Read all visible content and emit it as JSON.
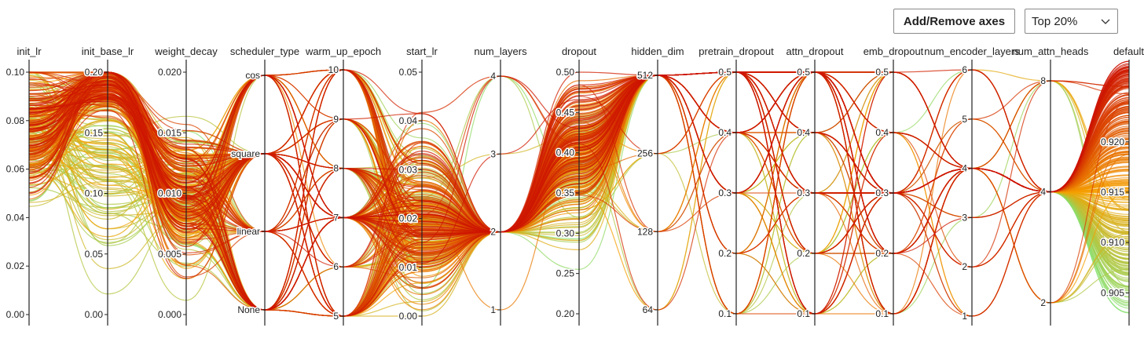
{
  "toolbar": {
    "add_remove_label": "Add/Remove axes",
    "filter_selected": "Top 20%",
    "filter_icon": "chevron-down-icon"
  },
  "colors": {
    "high": "#cc1100",
    "mid": "#f5a000",
    "low": "#7ee67a",
    "axis": "#222222"
  },
  "chart_data": {
    "type": "parallel-coordinates",
    "title": "",
    "color_by": "default",
    "color_range": [
      0.902,
      0.928
    ],
    "axes": [
      {
        "name": "init_lr",
        "type": "linear",
        "range": [
          0.0,
          0.1
        ],
        "ticks": [
          "0.00",
          "0.02",
          "0.04",
          "0.06",
          "0.08",
          "0.10"
        ],
        "tick_values": [
          0,
          0.02,
          0.04,
          0.06,
          0.08,
          0.1
        ]
      },
      {
        "name": "init_base_lr",
        "type": "linear",
        "range": [
          0.0,
          0.2
        ],
        "ticks": [
          "0.00",
          "0.05",
          "0.10",
          "0.15",
          "0.20"
        ],
        "tick_values": [
          0,
          0.05,
          0.1,
          0.15,
          0.2
        ]
      },
      {
        "name": "weight_decay",
        "type": "linear",
        "range": [
          0.0,
          0.02
        ],
        "ticks": [
          "0.000",
          "0.005",
          "0.010",
          "0.015",
          "0.020"
        ],
        "tick_values": [
          0,
          0.005,
          0.01,
          0.015,
          0.02
        ]
      },
      {
        "name": "scheduler_type",
        "type": "categorical",
        "ticks": [
          "None",
          "linear",
          "square",
          "cos"
        ]
      },
      {
        "name": "warm_up_epoch",
        "type": "linear",
        "range": [
          5,
          10
        ],
        "ticks": [
          "5",
          "6",
          "7",
          "8",
          "9",
          "10"
        ],
        "tick_values": [
          5,
          6,
          7,
          8,
          9,
          10
        ]
      },
      {
        "name": "start_lr",
        "type": "linear",
        "range": [
          0.0,
          0.05
        ],
        "ticks": [
          "0.00",
          "0.01",
          "0.02",
          "0.03",
          "0.04",
          "0.05"
        ],
        "tick_values": [
          0,
          0.01,
          0.02,
          0.03,
          0.04,
          0.05
        ]
      },
      {
        "name": "num_layers",
        "type": "linear",
        "range": [
          1,
          4
        ],
        "ticks": [
          "1",
          "2",
          "3",
          "4"
        ],
        "tick_values": [
          1,
          2,
          3,
          4
        ]
      },
      {
        "name": "dropout",
        "type": "linear",
        "range": [
          0.2,
          0.5
        ],
        "ticks": [
          "0.20",
          "0.25",
          "0.30",
          "0.35",
          "0.40",
          "0.45",
          "0.50"
        ],
        "tick_values": [
          0.2,
          0.25,
          0.3,
          0.35,
          0.4,
          0.45,
          0.5
        ]
      },
      {
        "name": "hidden_dim",
        "type": "log2",
        "range": [
          64,
          512
        ],
        "ticks": [
          "64",
          "128",
          "256",
          "512"
        ],
        "tick_values": [
          64,
          128,
          256,
          512
        ]
      },
      {
        "name": "pretrain_dropout",
        "type": "linear",
        "range": [
          0.1,
          0.5
        ],
        "ticks": [
          "0.1",
          "0.2",
          "0.3",
          "0.4",
          "0.5"
        ],
        "tick_values": [
          0.1,
          0.2,
          0.3,
          0.4,
          0.5
        ]
      },
      {
        "name": "attn_dropout",
        "type": "linear",
        "range": [
          0.1,
          0.5
        ],
        "ticks": [
          "0.1",
          "0.2",
          "0.3",
          "0.4",
          "0.5"
        ],
        "tick_values": [
          0.1,
          0.2,
          0.3,
          0.4,
          0.5
        ]
      },
      {
        "name": "emb_dropout",
        "type": "linear",
        "range": [
          0.1,
          0.5
        ],
        "ticks": [
          "0.1",
          "0.2",
          "0.3",
          "0.4",
          "0.5"
        ],
        "tick_values": [
          0.1,
          0.2,
          0.3,
          0.4,
          0.5
        ]
      },
      {
        "name": "num_encoder_layers",
        "type": "linear",
        "range": [
          1,
          6
        ],
        "ticks": [
          "1",
          "2",
          "3",
          "4",
          "5",
          "6"
        ],
        "tick_values": [
          1,
          2,
          3,
          4,
          5,
          6
        ]
      },
      {
        "name": "num_attn_heads",
        "type": "log2",
        "range": [
          1.6,
          9
        ],
        "ticks": [
          "2",
          "4",
          "8"
        ],
        "tick_values": [
          2,
          4,
          8
        ]
      },
      {
        "name": "default",
        "type": "linear",
        "range": [
          0.902,
          0.928
        ],
        "ticks": [
          "0.905",
          "0.910",
          "0.915",
          "0.920"
        ],
        "tick_values": [
          0.905,
          0.91,
          0.915,
          0.92
        ]
      }
    ],
    "typical_values": {
      "init_lr": 0.075,
      "init_base_lr": 0.2,
      "weight_decay": 0.01,
      "scheduler_type": "square",
      "warm_up_epoch": 7,
      "start_lr": 0.02,
      "num_layers": 2,
      "dropout": 0.4,
      "hidden_dim": 512,
      "pretrain_dropout": 0.5,
      "attn_dropout": 0.5,
      "emb_dropout": 0.3,
      "num_encoder_layers": 4,
      "num_attn_heads": 4,
      "default": 0.918
    },
    "line_count": 300
  }
}
